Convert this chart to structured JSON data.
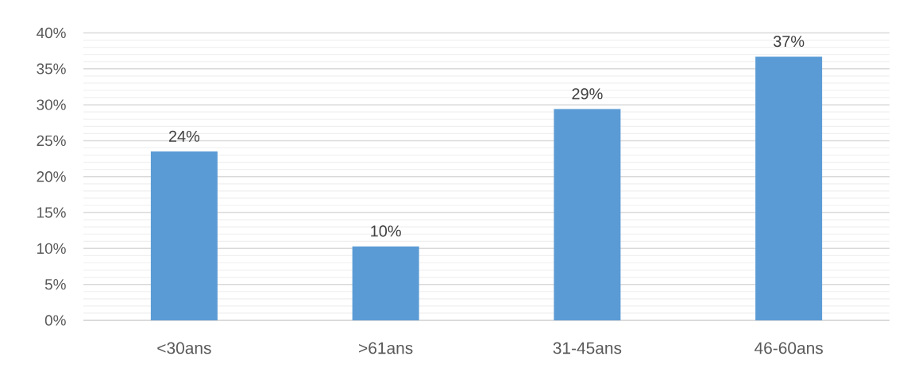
{
  "chart_data": {
    "type": "bar",
    "categories": [
      "<30ans",
      ">61ans",
      "31-45ans",
      "46-60ans"
    ],
    "values": [
      23.5,
      10.3,
      29.4,
      36.7
    ],
    "value_labels": [
      "24%",
      "10%",
      "29%",
      "37%"
    ],
    "color": "#5b9bd5",
    "ylim": [
      0,
      40
    ],
    "yticks": [
      {
        "value": 0,
        "label": "0%"
      },
      {
        "value": 1,
        "label": null
      },
      {
        "value": 2,
        "label": null
      },
      {
        "value": 3,
        "label": null
      },
      {
        "value": 4,
        "label": null
      },
      {
        "value": 5,
        "label": "5%"
      },
      {
        "value": 6,
        "label": null
      },
      {
        "value": 7,
        "label": null
      },
      {
        "value": 8,
        "label": null
      },
      {
        "value": 9,
        "label": null
      },
      {
        "value": 10,
        "label": "10%"
      },
      {
        "value": 11,
        "label": null
      },
      {
        "value": 12,
        "label": null
      },
      {
        "value": 13,
        "label": null
      },
      {
        "value": 14,
        "label": null
      },
      {
        "value": 15,
        "label": "15%"
      },
      {
        "value": 16,
        "label": null
      },
      {
        "value": 17,
        "label": null
      },
      {
        "value": 18,
        "label": null
      },
      {
        "value": 19,
        "label": null
      },
      {
        "value": 20,
        "label": "20%"
      },
      {
        "value": 21,
        "label": null
      },
      {
        "value": 22,
        "label": null
      },
      {
        "value": 23,
        "label": null
      },
      {
        "value": 24,
        "label": null
      },
      {
        "value": 25,
        "label": "25%"
      },
      {
        "value": 26,
        "label": null
      },
      {
        "value": 27,
        "label": null
      },
      {
        "value": 28,
        "label": null
      },
      {
        "value": 29,
        "label": null
      },
      {
        "value": 30,
        "label": "30%"
      },
      {
        "value": 31,
        "label": null
      },
      {
        "value": 32,
        "label": null
      },
      {
        "value": 33,
        "label": null
      },
      {
        "value": 34,
        "label": null
      },
      {
        "value": 35,
        "label": "35%"
      },
      {
        "value": 36,
        "label": null
      },
      {
        "value": 37,
        "label": null
      },
      {
        "value": 38,
        "label": null
      },
      {
        "value": 39,
        "label": null
      },
      {
        "value": 40,
        "label": "40%"
      }
    ],
    "grid": "y"
  }
}
